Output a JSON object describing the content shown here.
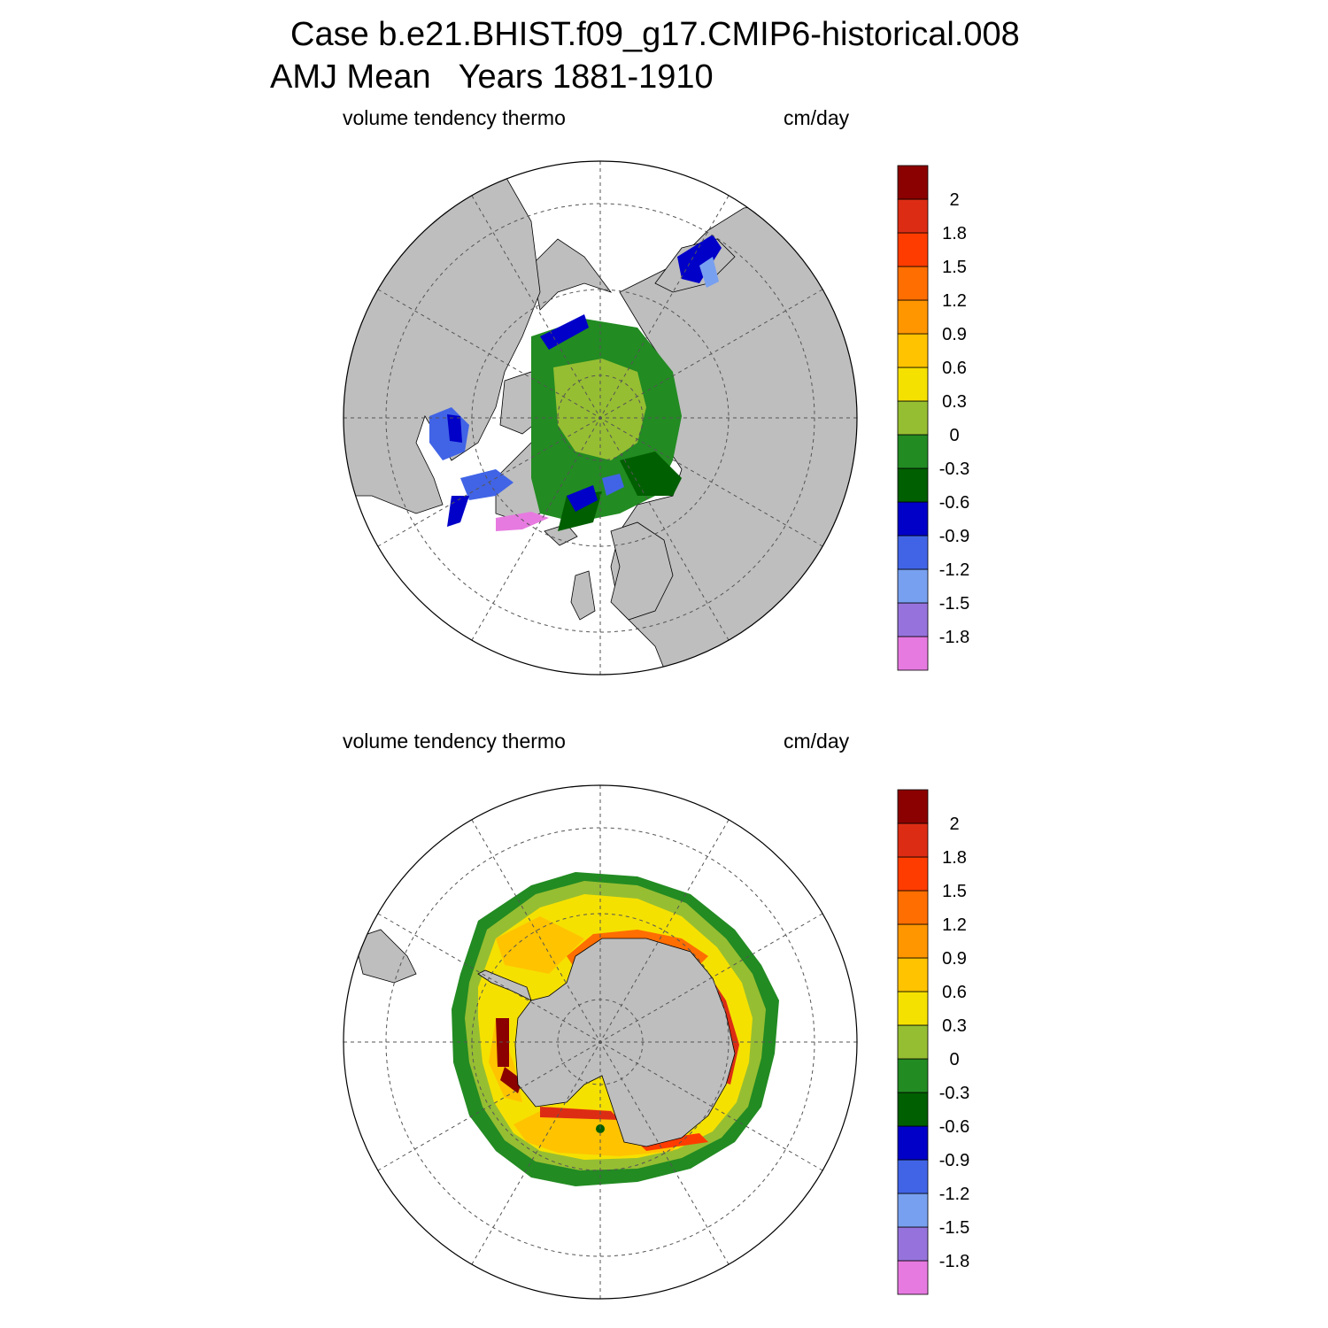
{
  "header": {
    "case_line": "Case b.e21.BHIST.f09_g17.CMIP6-historical.008",
    "period_line": "AMJ Mean   Years 1881-1910"
  },
  "colors": {
    "land": "#bebebe",
    "background": "#ffffff",
    "scale": [
      "#e77ae0",
      "#9673dc",
      "#78a0f0",
      "#4164e6",
      "#0000c8",
      "#005f00",
      "#228b22",
      "#96be32",
      "#f5e100",
      "#ffc300",
      "#ff9600",
      "#ff6e00",
      "#ff3c00",
      "#dc2d14",
      "#8b0000"
    ]
  },
  "panels": [
    {
      "id": "north",
      "variable_label": "volume tendency thermo",
      "units_label": "cm/day",
      "hemisphere": "Northern Hemisphere (polar stereographic)",
      "colorbar_labels": [
        "2",
        "1.8",
        "1.5",
        "1.2",
        "0.9",
        "0.6",
        "0.3",
        "0",
        "-0.3",
        "-0.6",
        "-0.9",
        "-1.2",
        "-1.5",
        "-1.8"
      ]
    },
    {
      "id": "south",
      "variable_label": "volume tendency thermo",
      "units_label": "cm/day",
      "hemisphere": "Southern Hemisphere (polar stereographic)",
      "colorbar_labels": [
        "2",
        "1.8",
        "1.5",
        "1.2",
        "0.9",
        "0.6",
        "0.3",
        "0",
        "-0.3",
        "-0.6",
        "-0.9",
        "-1.2",
        "-1.5",
        "-1.8"
      ]
    }
  ]
}
